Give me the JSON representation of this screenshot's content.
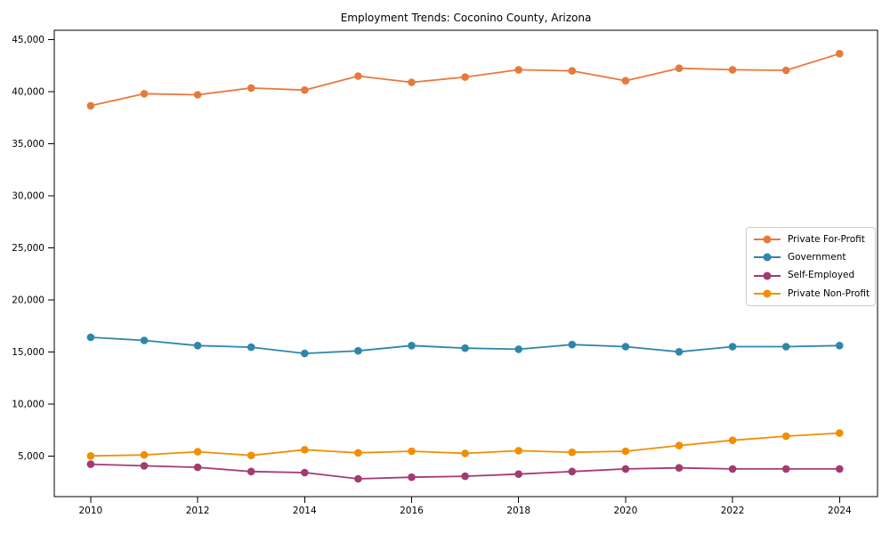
{
  "chart_data": {
    "type": "line",
    "title": "Employment Trends: Coconino County, Arizona",
    "xlabel": "",
    "ylabel": "",
    "grid": false,
    "legend_position": "center-right",
    "x": [
      2010,
      2011,
      2012,
      2013,
      2014,
      2015,
      2016,
      2017,
      2018,
      2019,
      2020,
      2021,
      2022,
      2023,
      2024
    ],
    "xticks": [
      2010,
      2012,
      2014,
      2016,
      2018,
      2020,
      2022,
      2024
    ],
    "xtick_labels": [
      "2010",
      "2012",
      "2014",
      "2016",
      "2018",
      "2020",
      "2022",
      "2024"
    ],
    "yticks": [
      5000,
      10000,
      15000,
      20000,
      25000,
      30000,
      35000,
      40000,
      45000
    ],
    "ytick_labels": [
      "5,000",
      "10,000",
      "15,000",
      "20,000",
      "25,000",
      "30,000",
      "35,000",
      "40,000",
      "45,000"
    ],
    "xlim": [
      2009.32,
      2024.71
    ],
    "ylim": [
      1090,
      45900
    ],
    "series": [
      {
        "name": "Private For-Profit",
        "color": "#E8793D",
        "values": [
          38650,
          39800,
          39700,
          40350,
          40150,
          41500,
          40900,
          41400,
          42100,
          42000,
          41050,
          42250,
          42100,
          42050,
          43650
        ]
      },
      {
        "name": "Government",
        "color": "#2E86AB",
        "values": [
          16400,
          16100,
          15600,
          15450,
          14850,
          15100,
          15600,
          15350,
          15250,
          15700,
          15500,
          15000,
          15500,
          15500,
          15600
        ]
      },
      {
        "name": "Self-Employed",
        "color": "#A23B72",
        "values": [
          4200,
          4050,
          3900,
          3500,
          3400,
          2800,
          2950,
          3050,
          3250,
          3500,
          3750,
          3850,
          3750,
          3750,
          3750
        ]
      },
      {
        "name": "Private Non-Profit",
        "color": "#F18F01",
        "values": [
          5000,
          5100,
          5400,
          5050,
          5600,
          5300,
          5450,
          5250,
          5500,
          5350,
          5450,
          6000,
          6500,
          6900,
          7200
        ]
      }
    ]
  }
}
